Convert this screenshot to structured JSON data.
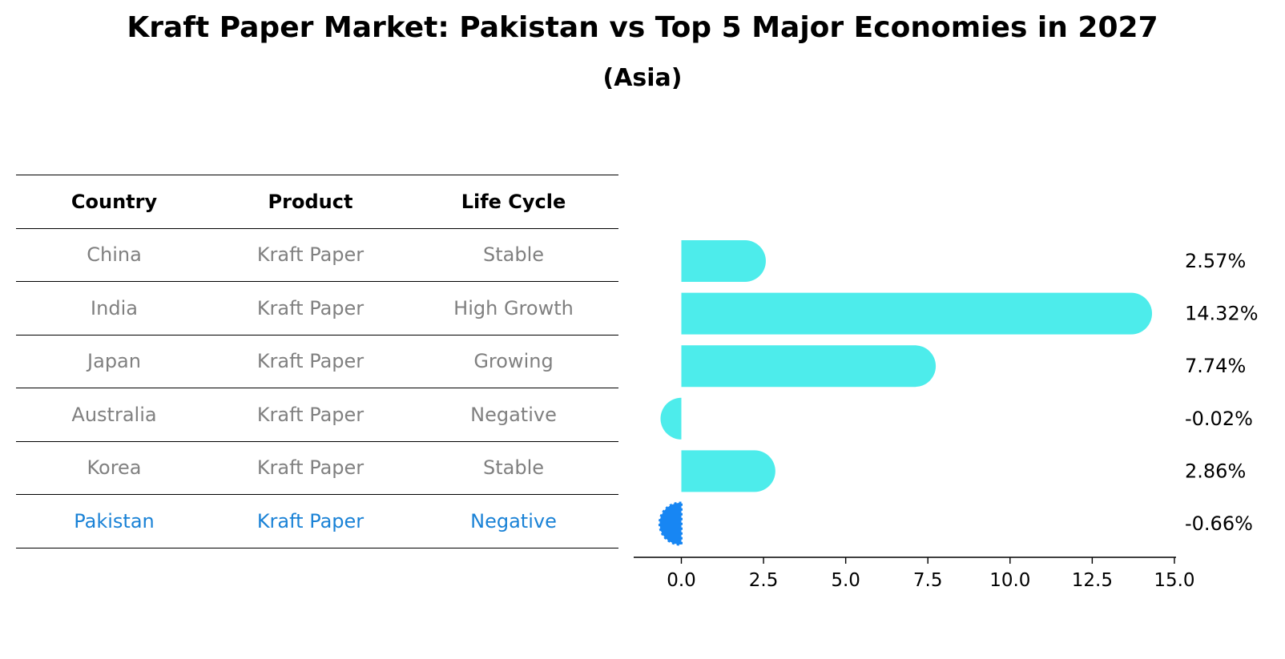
{
  "title": "Kraft Paper Market: Pakistan vs Top 5 Major Economies in 2027",
  "subtitle": "(Asia)",
  "table": {
    "headers": [
      "Country",
      "Product",
      "Life Cycle"
    ],
    "rows": [
      {
        "country": "China",
        "product": "Kraft Paper",
        "life_cycle": "Stable"
      },
      {
        "country": "India",
        "product": "Kraft Paper",
        "life_cycle": "High Growth"
      },
      {
        "country": "Japan",
        "product": "Kraft Paper",
        "life_cycle": "Growing"
      },
      {
        "country": "Australia",
        "product": "Kraft Paper",
        "life_cycle": "Negative"
      },
      {
        "country": "Korea",
        "product": "Kraft Paper",
        "life_cycle": "Stable"
      },
      {
        "country": "Pakistan",
        "product": "Kraft Paper",
        "life_cycle": "Negative"
      }
    ]
  },
  "chart_data": {
    "type": "bar",
    "orientation": "horizontal",
    "title": "Kraft Paper Market: Pakistan vs Top 5 Major Economies in 2027",
    "subtitle": "(Asia)",
    "categories": [
      "China",
      "India",
      "Japan",
      "Australia",
      "Korea",
      "Pakistan"
    ],
    "values": [
      2.57,
      14.32,
      7.74,
      -0.02,
      2.86,
      -0.66
    ],
    "value_labels": [
      "2.57%",
      "14.32%",
      "7.74%",
      "-0.02%",
      "2.86%",
      "-0.66%"
    ],
    "highlight": "Pakistan",
    "xlim": [
      -1.45,
      15.05
    ],
    "xticks": [
      0.0,
      2.5,
      5.0,
      7.5,
      10.0,
      12.5,
      15.0
    ],
    "xtick_labels": [
      "0.0",
      "2.5",
      "5.0",
      "7.5",
      "10.0",
      "12.5",
      "15.0"
    ],
    "xlabel": "",
    "ylabel": "",
    "grid": false,
    "colors": {
      "default": "#4deceb",
      "highlight": "#1786f3",
      "highlight_text": "#1a82d6",
      "muted_text": "#808080"
    }
  }
}
